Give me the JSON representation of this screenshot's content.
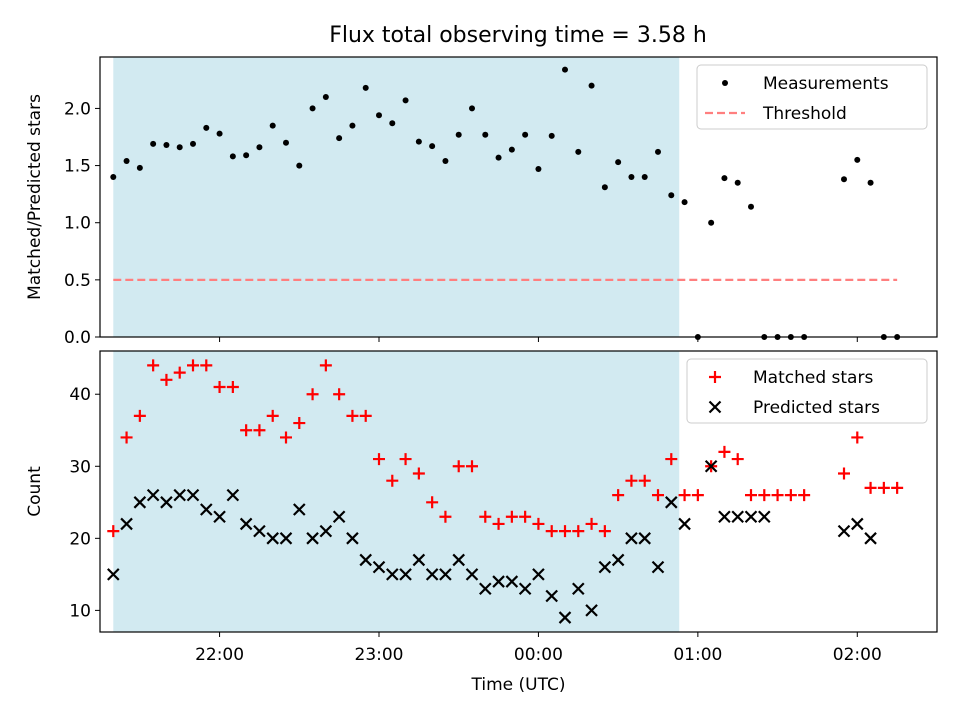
{
  "title": "Flux total observing time = 3.58 h",
  "colors": {
    "shade": "#add8e6",
    "measurement": "#000000",
    "threshold": "#ff7f7f",
    "matched": "#ff0000",
    "predicted": "#000000"
  },
  "chart_data": [
    {
      "type": "scatter",
      "xlabel": "",
      "ylabel": "Matched/Predicted stars",
      "xlim": [
        "21:15",
        "02:30"
      ],
      "ylim": [
        0,
        2.45
      ],
      "yticks": [
        "0.0",
        "0.5",
        "1.0",
        "1.5",
        "2.0"
      ],
      "shaded_interval": [
        "21:20",
        "00:53"
      ],
      "legend_position": "upper right",
      "series": [
        {
          "name": "Measurements",
          "marker": "dot",
          "points": [
            [
              "21:20",
              1.4
            ],
            [
              "21:25",
              1.54
            ],
            [
              "21:30",
              1.48
            ],
            [
              "21:35",
              1.69
            ],
            [
              "21:40",
              1.68
            ],
            [
              "21:45",
              1.66
            ],
            [
              "21:50",
              1.69
            ],
            [
              "21:55",
              1.83
            ],
            [
              "22:00",
              1.78
            ],
            [
              "22:05",
              1.58
            ],
            [
              "22:10",
              1.59
            ],
            [
              "22:15",
              1.66
            ],
            [
              "22:20",
              1.85
            ],
            [
              "22:25",
              1.7
            ],
            [
              "22:30",
              1.5
            ],
            [
              "22:35",
              2.0
            ],
            [
              "22:40",
              2.1
            ],
            [
              "22:45",
              1.74
            ],
            [
              "22:50",
              1.85
            ],
            [
              "22:55",
              2.18
            ],
            [
              "23:00",
              1.94
            ],
            [
              "23:05",
              1.87
            ],
            [
              "23:10",
              2.07
            ],
            [
              "23:15",
              1.71
            ],
            [
              "23:20",
              1.67
            ],
            [
              "23:25",
              1.54
            ],
            [
              "23:30",
              1.77
            ],
            [
              "23:35",
              2.0
            ],
            [
              "23:40",
              1.77
            ],
            [
              "23:45",
              1.57
            ],
            [
              "23:50",
              1.64
            ],
            [
              "23:55",
              1.77
            ],
            [
              "00:00",
              1.47
            ],
            [
              "00:05",
              1.76
            ],
            [
              "00:10",
              2.34
            ],
            [
              "00:15",
              1.62
            ],
            [
              "00:20",
              2.2
            ],
            [
              "00:25",
              1.31
            ],
            [
              "00:30",
              1.53
            ],
            [
              "00:35",
              1.4
            ],
            [
              "00:40",
              1.4
            ],
            [
              "00:45",
              1.62
            ],
            [
              "00:50",
              1.24
            ],
            [
              "00:55",
              1.18
            ],
            [
              "01:00",
              0.0
            ],
            [
              "01:05",
              1.0
            ],
            [
              "01:10",
              1.39
            ],
            [
              "01:15",
              1.35
            ],
            [
              "01:20",
              1.14
            ],
            [
              "01:25",
              0.0
            ],
            [
              "01:30",
              0.0
            ],
            [
              "01:35",
              0.0
            ],
            [
              "01:40",
              0.0
            ],
            [
              "01:55",
              1.38
            ],
            [
              "02:00",
              1.55
            ],
            [
              "02:05",
              1.35
            ],
            [
              "02:10",
              0.0
            ],
            [
              "02:15",
              0.0
            ]
          ]
        },
        {
          "name": "Threshold",
          "style": "dashed",
          "points": [
            [
              "21:20",
              0.5
            ],
            [
              "02:15",
              0.5
            ]
          ]
        }
      ]
    },
    {
      "type": "scatter",
      "xlabel": "Time (UTC)",
      "ylabel": "Count",
      "xlim": [
        "21:15",
        "02:30"
      ],
      "ylim": [
        7,
        46
      ],
      "yticks": [
        "10",
        "20",
        "30",
        "40"
      ],
      "xticks": [
        "22:00",
        "23:00",
        "00:00",
        "01:00",
        "02:00"
      ],
      "shaded_interval": [
        "21:20",
        "00:53"
      ],
      "legend_position": "upper right",
      "series": [
        {
          "name": "Matched stars",
          "marker": "plus",
          "points": [
            [
              "21:20",
              21
            ],
            [
              "21:25",
              34
            ],
            [
              "21:30",
              37
            ],
            [
              "21:35",
              44
            ],
            [
              "21:40",
              42
            ],
            [
              "21:45",
              43
            ],
            [
              "21:50",
              44
            ],
            [
              "21:55",
              44
            ],
            [
              "22:00",
              41
            ],
            [
              "22:05",
              41
            ],
            [
              "22:10",
              35
            ],
            [
              "22:15",
              35
            ],
            [
              "22:20",
              37
            ],
            [
              "22:25",
              34
            ],
            [
              "22:30",
              36
            ],
            [
              "22:35",
              40
            ],
            [
              "22:40",
              44
            ],
            [
              "22:45",
              40
            ],
            [
              "22:50",
              37
            ],
            [
              "22:55",
              37
            ],
            [
              "23:00",
              31
            ],
            [
              "23:05",
              28
            ],
            [
              "23:10",
              31
            ],
            [
              "23:15",
              29
            ],
            [
              "23:20",
              25
            ],
            [
              "23:25",
              23
            ],
            [
              "23:30",
              30
            ],
            [
              "23:35",
              30
            ],
            [
              "23:40",
              23
            ],
            [
              "23:45",
              22
            ],
            [
              "23:50",
              23
            ],
            [
              "23:55",
              23
            ],
            [
              "00:00",
              22
            ],
            [
              "00:05",
              21
            ],
            [
              "00:10",
              21
            ],
            [
              "00:15",
              21
            ],
            [
              "00:20",
              22
            ],
            [
              "00:25",
              21
            ],
            [
              "00:30",
              26
            ],
            [
              "00:35",
              28
            ],
            [
              "00:40",
              28
            ],
            [
              "00:45",
              26
            ],
            [
              "00:50",
              31
            ],
            [
              "00:55",
              26
            ],
            [
              "01:00",
              26
            ],
            [
              "01:05",
              30
            ],
            [
              "01:10",
              32
            ],
            [
              "01:15",
              31
            ],
            [
              "01:20",
              26
            ],
            [
              "01:25",
              26
            ],
            [
              "01:30",
              26
            ],
            [
              "01:35",
              26
            ],
            [
              "01:40",
              26
            ],
            [
              "01:55",
              29
            ],
            [
              "02:00",
              34
            ],
            [
              "02:05",
              27
            ],
            [
              "02:10",
              27
            ],
            [
              "02:15",
              27
            ]
          ]
        },
        {
          "name": "Predicted stars",
          "marker": "x",
          "points": [
            [
              "21:20",
              15
            ],
            [
              "21:25",
              22
            ],
            [
              "21:30",
              25
            ],
            [
              "21:35",
              26
            ],
            [
              "21:40",
              25
            ],
            [
              "21:45",
              26
            ],
            [
              "21:50",
              26
            ],
            [
              "21:55",
              24
            ],
            [
              "22:00",
              23
            ],
            [
              "22:05",
              26
            ],
            [
              "22:10",
              22
            ],
            [
              "22:15",
              21
            ],
            [
              "22:20",
              20
            ],
            [
              "22:25",
              20
            ],
            [
              "22:30",
              24
            ],
            [
              "22:35",
              20
            ],
            [
              "22:40",
              21
            ],
            [
              "22:45",
              23
            ],
            [
              "22:50",
              20
            ],
            [
              "22:55",
              17
            ],
            [
              "23:00",
              16
            ],
            [
              "23:05",
              15
            ],
            [
              "23:10",
              15
            ],
            [
              "23:15",
              17
            ],
            [
              "23:20",
              15
            ],
            [
              "23:25",
              15
            ],
            [
              "23:30",
              17
            ],
            [
              "23:35",
              15
            ],
            [
              "23:40",
              13
            ],
            [
              "23:45",
              14
            ],
            [
              "23:50",
              14
            ],
            [
              "23:55",
              13
            ],
            [
              "00:00",
              15
            ],
            [
              "00:05",
              12
            ],
            [
              "00:10",
              9
            ],
            [
              "00:15",
              13
            ],
            [
              "00:20",
              10
            ],
            [
              "00:25",
              16
            ],
            [
              "00:30",
              17
            ],
            [
              "00:35",
              20
            ],
            [
              "00:40",
              20
            ],
            [
              "00:45",
              16
            ],
            [
              "00:50",
              25
            ],
            [
              "00:55",
              22
            ],
            [
              "01:05",
              30
            ],
            [
              "01:10",
              23
            ],
            [
              "01:15",
              23
            ],
            [
              "01:20",
              23
            ],
            [
              "01:25",
              23
            ],
            [
              "01:55",
              21
            ],
            [
              "02:00",
              22
            ],
            [
              "02:05",
              20
            ]
          ]
        }
      ]
    }
  ]
}
